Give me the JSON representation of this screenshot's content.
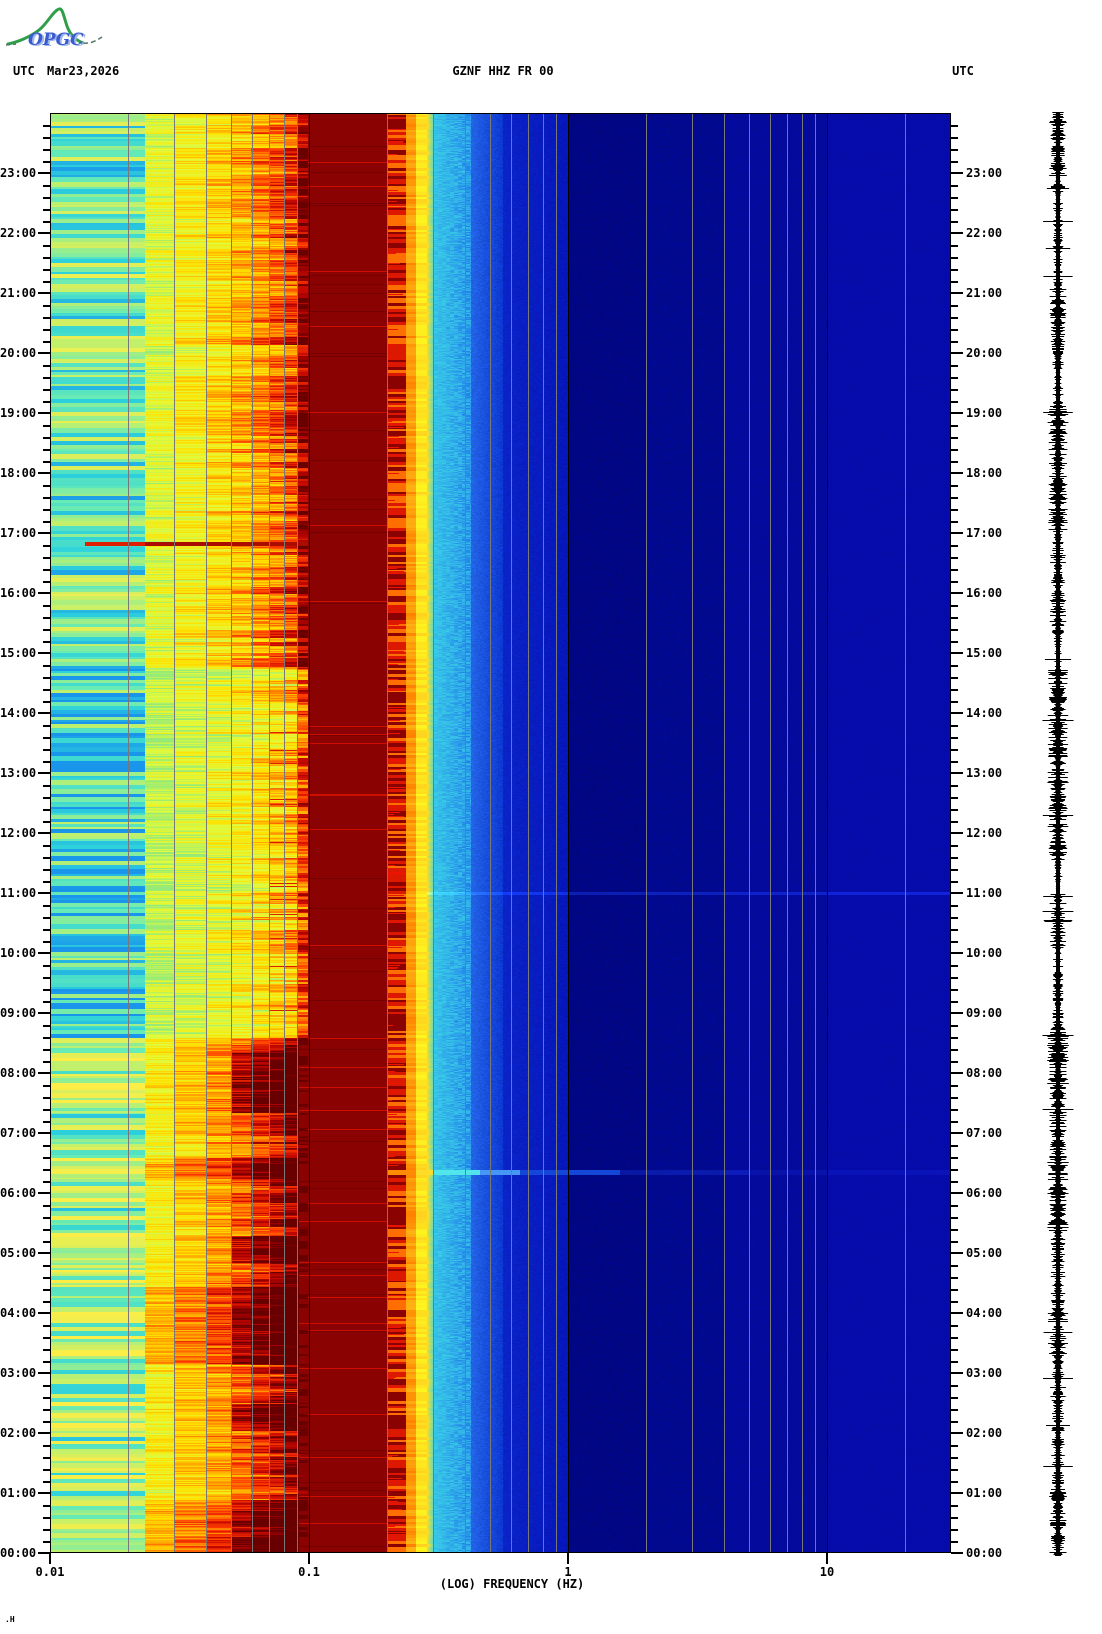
{
  "header": {
    "utc_left": "UTC",
    "date": "Mar23,2026",
    "title": "GZNF HHZ FR 00",
    "utc_right": "UTC"
  },
  "logo": {
    "org": "OPGC",
    "green": "#2f9e49",
    "blue": "#3b5bd0"
  },
  "signature": ".H",
  "axes": {
    "x": {
      "label": "(LOG) FREQUENCY (HZ)",
      "scale": "log10",
      "min_hz": 0.01,
      "max_hz": 30,
      "ticks": [
        {
          "label": "0.01",
          "hz": 0.01
        },
        {
          "label": "0.1",
          "hz": 0.1
        },
        {
          "label": "1",
          "hz": 1
        },
        {
          "label": "10",
          "hz": 10
        }
      ]
    },
    "hour_labels": [
      "00:00",
      "01:00",
      "02:00",
      "03:00",
      "04:00",
      "05:00",
      "06:00",
      "07:00",
      "08:00",
      "09:00",
      "10:00",
      "11:00",
      "12:00",
      "13:00",
      "14:00",
      "15:00",
      "16:00",
      "17:00",
      "18:00",
      "19:00",
      "20:00",
      "21:00",
      "22:00",
      "23:00"
    ],
    "minor_tick_minutes": 12
  },
  "chart_data": {
    "type": "heatmap",
    "title": "GZNF HHZ FR 00",
    "date": "Mar23,2026",
    "xlabel": "(LOG) FREQUENCY (HZ)",
    "x_range_hz": [
      0.01,
      30
    ],
    "y_range_hours_utc": [
      0,
      24
    ],
    "y_direction": "00:00 at bottom, 24:00 at top",
    "colormap": "jet-like: blue=low power, cyan/yellow=mid, dark red=saturated high power",
    "bands": [
      {
        "f_hz": [
          0.01,
          0.023
        ],
        "appearance": "cyan-green horizontal banding, low-mid power"
      },
      {
        "f_hz": [
          0.023,
          0.09
        ],
        "appearance": "yellow/orange/red, strong diurnal modulation"
      },
      {
        "f_hz": [
          0.09,
          0.21
        ],
        "appearance": "solid saturated dark-red microseism band all 24h"
      },
      {
        "f_hz": [
          0.21,
          0.26
        ],
        "appearance": "red/orange fringe with bright spikes"
      },
      {
        "f_hz": [
          0.26,
          0.45
        ],
        "appearance": "yellow to cyan transition"
      },
      {
        "f_hz": [
          0.45,
          1.0
        ],
        "appearance": "medium blue"
      },
      {
        "f_hz": [
          1.0,
          4.0
        ],
        "appearance": "darkest navy blue"
      },
      {
        "f_hz": [
          4.0,
          30.0
        ],
        "appearance": "uniform dark blue"
      }
    ],
    "phases": [
      {
        "hours": [
          0.0,
          8.6
        ],
        "activity": 0.8,
        "desc": "night: intense red/dark-red 0.02-0.09 Hz"
      },
      {
        "hours": [
          8.6,
          14.75
        ],
        "activity": 0.3,
        "desc": "midday: quiet, cyan/green low band"
      },
      {
        "hours": [
          14.75,
          24.0
        ],
        "activity": 0.55,
        "desc": "evening: yellow with orange/red stripes"
      }
    ],
    "night_blocks_hours": [
      [
        0.0,
        0.9
      ],
      [
        2.05,
        2.5
      ],
      [
        3.15,
        4.45
      ],
      [
        4.85,
        5.3
      ],
      [
        6.25,
        6.6
      ],
      [
        7.35,
        8.35
      ]
    ],
    "events": [
      {
        "time_utc": "06:21",
        "hour": 6.35,
        "desc": "broadband streak: orange 0.2 Hz fringe, cyan/light-blue to ~2 Hz"
      },
      {
        "time_utc": "11:00",
        "hour": 11.0,
        "desc": "faint brighter-blue broadband streak above 0.3 Hz"
      },
      {
        "time_utc": "16:50",
        "hour": 16.83,
        "desc": "red low-frequency line 0.012-0.1 Hz"
      }
    ],
    "right_trace": {
      "kind": "seismogram",
      "color": "#000000",
      "desc": "continuous 24 h noise trace"
    }
  },
  "layout_colors": {
    "grid_minor": "#787878",
    "grid_decade": "#000000",
    "frame": "#000000"
  }
}
